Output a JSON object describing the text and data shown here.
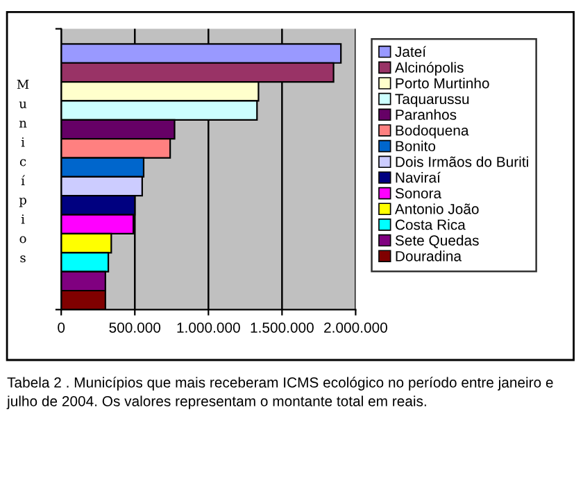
{
  "chart_data": {
    "type": "bar",
    "orientation": "horizontal",
    "stacked": true,
    "ylabel": "Municípios",
    "categories": [
      null,
      null,
      null,
      null,
      null,
      null,
      null,
      null,
      null,
      null,
      null,
      null,
      null,
      null
    ],
    "series": [
      {
        "name": "Jateí",
        "color": "#9999ff",
        "values": [
          1900000,
          null,
          null,
          null,
          null,
          null,
          null,
          null,
          null,
          null,
          null,
          null,
          null,
          null
        ]
      },
      {
        "name": "Alcinópolis",
        "color": "#993366",
        "values": [
          null,
          1850000,
          null,
          null,
          null,
          null,
          null,
          null,
          null,
          null,
          null,
          null,
          null,
          null
        ]
      },
      {
        "name": "Porto Murtinho",
        "color": "#ffffcc",
        "values": [
          null,
          null,
          1340000,
          null,
          null,
          null,
          null,
          null,
          null,
          null,
          null,
          null,
          null,
          null
        ]
      },
      {
        "name": "Taquarussu",
        "color": "#ccffff",
        "values": [
          null,
          null,
          null,
          1330000,
          null,
          null,
          null,
          null,
          null,
          null,
          null,
          null,
          null,
          null
        ]
      },
      {
        "name": "Paranhos",
        "color": "#660066",
        "values": [
          null,
          null,
          null,
          null,
          770000,
          null,
          null,
          null,
          null,
          null,
          null,
          null,
          null,
          null
        ]
      },
      {
        "name": "Bodoquena",
        "color": "#ff8080",
        "values": [
          null,
          null,
          null,
          null,
          null,
          740000,
          null,
          null,
          null,
          null,
          null,
          null,
          null,
          null
        ]
      },
      {
        "name": "Bonito",
        "color": "#0066cc",
        "values": [
          null,
          null,
          null,
          null,
          null,
          null,
          560000,
          null,
          null,
          null,
          null,
          null,
          null,
          null
        ]
      },
      {
        "name": "Dois Irmãos do Buriti",
        "color": "#ccccff",
        "values": [
          null,
          null,
          null,
          null,
          null,
          null,
          null,
          550000,
          null,
          null,
          null,
          null,
          null,
          null
        ]
      },
      {
        "name": "Naviraí",
        "color": "#000080",
        "values": [
          null,
          null,
          null,
          null,
          null,
          null,
          null,
          null,
          500000,
          null,
          null,
          null,
          null,
          null
        ]
      },
      {
        "name": "Sonora",
        "color": "#ff00ff",
        "values": [
          null,
          null,
          null,
          null,
          null,
          null,
          null,
          null,
          null,
          490000,
          null,
          null,
          null,
          null
        ]
      },
      {
        "name": "Antonio João",
        "color": "#ffff00",
        "values": [
          null,
          null,
          null,
          null,
          null,
          null,
          null,
          null,
          null,
          null,
          340000,
          null,
          null,
          null
        ]
      },
      {
        "name": "Costa Rica",
        "color": "#00ffff",
        "values": [
          null,
          null,
          null,
          null,
          null,
          null,
          null,
          null,
          null,
          null,
          null,
          320000,
          null,
          null
        ]
      },
      {
        "name": "Sete Quedas",
        "color": "#800080",
        "values": [
          null,
          null,
          null,
          null,
          null,
          null,
          null,
          null,
          null,
          null,
          null,
          null,
          300000,
          null
        ]
      },
      {
        "name": "Douradina",
        "color": "#800000",
        "values": [
          null,
          null,
          null,
          null,
          null,
          null,
          null,
          null,
          null,
          null,
          null,
          null,
          null,
          300000
        ]
      }
    ],
    "xlim": [
      0,
      2000000
    ],
    "xticks": [
      0,
      {
        "value": 500000,
        "label": "500.000"
      },
      {
        "value": 1000000,
        "label": "1.000.000"
      },
      {
        "value": 1500000,
        "label": "1.500.000"
      },
      {
        "value": 2000000,
        "label": "2.000.000"
      }
    ],
    "grid": "x",
    "legend": "right",
    "annotations": [
      "Tabela 2 . Municípios que mais receberam ICMS ecológico no período entre janeiro e julho de 2004. Os valores representam o montante total em reais."
    ]
  }
}
